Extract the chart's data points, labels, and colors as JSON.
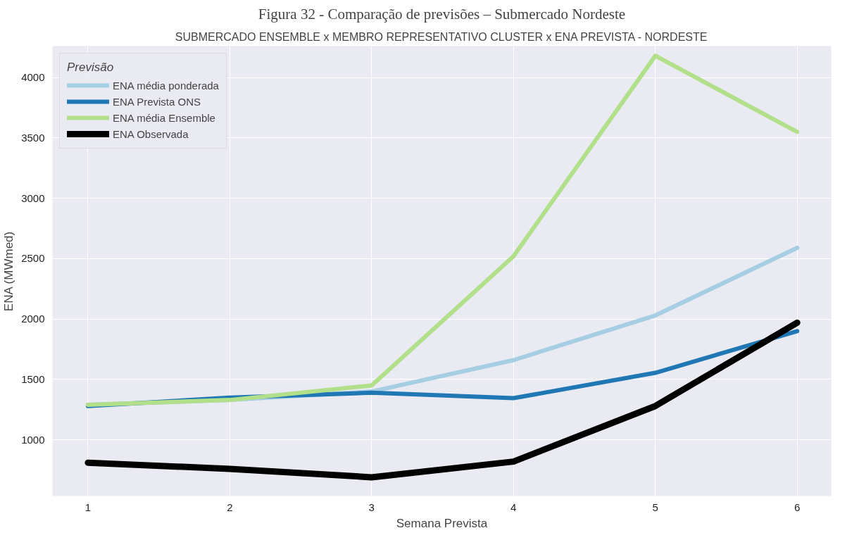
{
  "chart_data": {
    "type": "line",
    "title": "Figura 32 - Comparação de previsões – Submercado Nordeste",
    "subtitle": "SUBMERCADO ENSEMBLE x MEMBRO REPRESENTATIVO CLUSTER x ENA PREVISTA - NORDESTE",
    "xlabel": "Semana Prevista",
    "ylabel": "ENA (MWmed)",
    "legend_title": "Previsão",
    "x": [
      1,
      2,
      3,
      4,
      5,
      6
    ],
    "series": [
      {
        "name": "ENA média ponderada",
        "color": "#a6cee3",
        "values": [
          1290,
          1330,
          1400,
          1660,
          2030,
          2590
        ]
      },
      {
        "name": "ENA Prevista ONS",
        "color": "#1f78b4",
        "values": [
          1280,
          1350,
          1390,
          1345,
          1555,
          1900
        ]
      },
      {
        "name": "ENA média Ensemble",
        "color": "#b2df8a",
        "values": [
          1290,
          1330,
          1450,
          2520,
          4180,
          3550
        ]
      },
      {
        "name": "ENA Observada",
        "color": "#000000",
        "values": [
          810,
          760,
          690,
          820,
          1280,
          1970
        ]
      }
    ],
    "xlim": [
      0.75,
      6.24
    ],
    "ylim": [
      535,
      4260
    ],
    "xticks": [
      1,
      2,
      3,
      4,
      5,
      6
    ],
    "yticks": [
      1000,
      1500,
      2000,
      2500,
      3000,
      3500,
      4000
    ],
    "grid": true,
    "legend": "top left",
    "line_style": "solid",
    "marker": "none"
  }
}
